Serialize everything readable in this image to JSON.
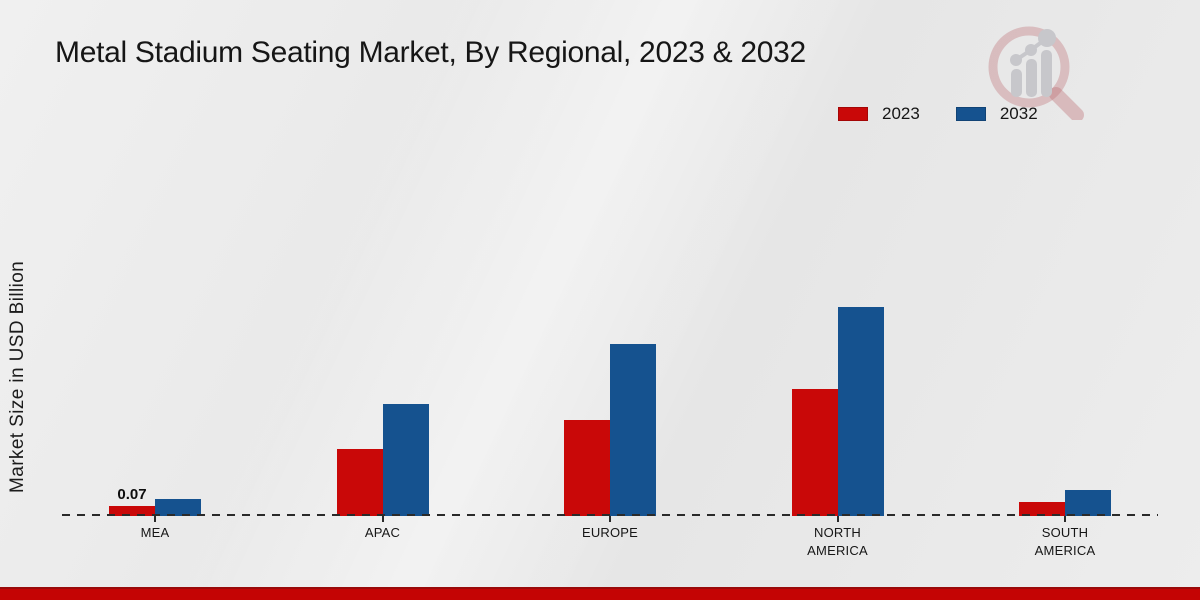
{
  "title": "Metal Stadium Seating Market, By Regional, 2023 & 2032",
  "chart_data": {
    "type": "bar",
    "title": "Metal Stadium Seating Market, By Regional, 2023 & 2032",
    "xlabel": "",
    "ylabel": "Market Size in USD Billion",
    "categories": [
      "MEA",
      "APAC",
      "EUROPE",
      "NORTH AMERICA",
      "SOUTH AMERICA"
    ],
    "series": [
      {
        "name": "2023",
        "color": "#c90808",
        "values": [
          0.07,
          0.47,
          0.67,
          0.89,
          0.1
        ]
      },
      {
        "name": "2032",
        "color": "#15528f",
        "values": [
          0.12,
          0.78,
          1.2,
          1.46,
          0.18
        ]
      }
    ],
    "bar_labels": [
      {
        "category_index": 0,
        "series_index": 0,
        "text": "0.07"
      }
    ],
    "ylim": [
      0,
      1.6
    ],
    "grid": false,
    "axis_style": "dashed-baseline-only",
    "legend_position": "top-right"
  },
  "legend": [
    {
      "label": "2023",
      "color": "#c90808"
    },
    {
      "label": "2032",
      "color": "#15528f"
    }
  ],
  "watermark": {
    "name": "market-research-future-logo"
  },
  "footer": {
    "band_color": "#c40404"
  }
}
